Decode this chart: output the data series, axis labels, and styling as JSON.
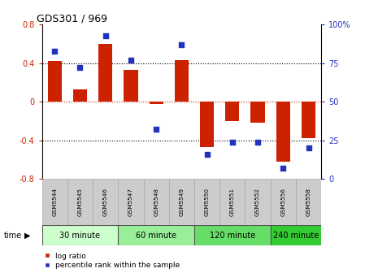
{
  "title": "GDS301 / 969",
  "samples": [
    "GSM5544",
    "GSM5545",
    "GSM5546",
    "GSM5547",
    "GSM5548",
    "GSM5549",
    "GSM5550",
    "GSM5551",
    "GSM5552",
    "GSM5556",
    "GSM5558"
  ],
  "log_ratios": [
    0.42,
    0.13,
    0.6,
    0.33,
    -0.02,
    0.43,
    -0.47,
    -0.2,
    -0.22,
    -0.62,
    -0.38
  ],
  "percentile_ranks": [
    83,
    72,
    93,
    77,
    32,
    87,
    16,
    24,
    24,
    7,
    20
  ],
  "ylim": [
    -0.8,
    0.8
  ],
  "yticks_left": [
    -0.8,
    -0.4,
    0.0,
    0.4,
    0.8
  ],
  "ytick_labels_left": [
    "-0.8",
    "-0.4",
    "0",
    "0.4",
    "0.8"
  ],
  "right_yticks": [
    0,
    25,
    50,
    75,
    100
  ],
  "right_ytick_labels": [
    "0",
    "25",
    "50",
    "75",
    "100%"
  ],
  "bar_color": "#cc2200",
  "dot_color": "#2233bb",
  "zero_line_color": "#cc2200",
  "grid_line_color": "#000000",
  "time_groups": [
    {
      "label": "30 minute",
      "start": 0,
      "end": 3
    },
    {
      "label": "60 minute",
      "start": 3,
      "end": 6
    },
    {
      "label": "120 minute",
      "start": 6,
      "end": 9
    },
    {
      "label": "240 minute",
      "start": 9,
      "end": 11
    }
  ],
  "time_colors": [
    "#ccffcc",
    "#99ee99",
    "#66dd66",
    "#33cc33"
  ],
  "legend_bar_label": "log ratio",
  "legend_dot_label": "percentile rank within the sample",
  "time_label": "time",
  "sample_bg": "#cccccc",
  "sample_border": "#aaaaaa"
}
